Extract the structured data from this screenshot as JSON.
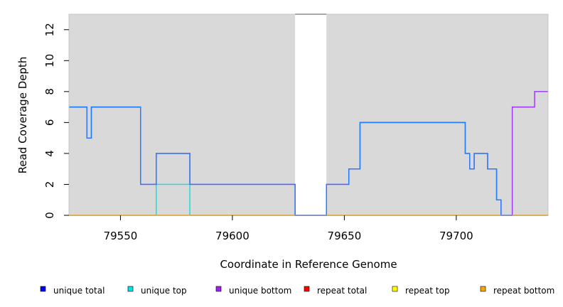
{
  "chart_data": {
    "type": "line",
    "step": true,
    "xlabel": "Coordinate in Reference Genome",
    "ylabel": "Read Coverage Depth",
    "xlim": [
      79527,
      79741
    ],
    "ylim": [
      0,
      13
    ],
    "xticks": [
      79550,
      79600,
      79650,
      79700
    ],
    "yticks": [
      0,
      2,
      4,
      6,
      8,
      10,
      12
    ],
    "gap_region": [
      79628,
      79642
    ],
    "background": "#d9d9d9",
    "legend_placement": "bottom",
    "series": [
      {
        "name": "unique top",
        "color": "#00e5e5",
        "points": [
          [
            79527,
            0
          ],
          [
            79566,
            0
          ],
          [
            79566,
            2
          ],
          [
            79581,
            2
          ],
          [
            79581,
            0
          ],
          [
            79741,
            0
          ]
        ]
      },
      {
        "name": "repeat total",
        "color": "#ff0000",
        "points": [
          [
            79527,
            0
          ],
          [
            79741,
            0
          ]
        ]
      },
      {
        "name": "repeat top",
        "color": "#e5e500",
        "points": [
          [
            79527,
            0
          ],
          [
            79741,
            0
          ]
        ]
      },
      {
        "name": "repeat bottom",
        "color": "#ffa500",
        "points": [
          [
            79527,
            0
          ],
          [
            79741,
            0
          ]
        ]
      },
      {
        "name": "unique bottom",
        "color": "#9b30ff",
        "points": [
          [
            79527,
            7
          ],
          [
            79535,
            7
          ],
          [
            79535,
            5
          ],
          [
            79537,
            5
          ],
          [
            79537,
            7
          ],
          [
            79559,
            7
          ],
          [
            79559,
            2
          ],
          [
            79566,
            2
          ],
          [
            79566,
            4
          ],
          [
            79581,
            4
          ],
          [
            79581,
            2
          ],
          [
            79628,
            2
          ],
          [
            79628,
            0
          ],
          [
            79642,
            0
          ],
          [
            79642,
            2
          ],
          [
            79652,
            2
          ],
          [
            79652,
            3
          ],
          [
            79657,
            3
          ],
          [
            79657,
            6
          ],
          [
            79704,
            6
          ],
          [
            79704,
            4
          ],
          [
            79706,
            4
          ],
          [
            79706,
            3
          ],
          [
            79708,
            3
          ],
          [
            79708,
            4
          ],
          [
            79714,
            4
          ],
          [
            79714,
            3
          ],
          [
            79718,
            3
          ],
          [
            79718,
            1
          ],
          [
            79720,
            1
          ],
          [
            79720,
            0
          ],
          [
            79725,
            0
          ],
          [
            79725,
            7
          ],
          [
            79735,
            7
          ],
          [
            79735,
            8
          ],
          [
            79741,
            8
          ]
        ]
      },
      {
        "name": "unique total",
        "color": "#1e7cff",
        "points": [
          [
            79527,
            7
          ],
          [
            79535,
            7
          ],
          [
            79535,
            5
          ],
          [
            79537,
            5
          ],
          [
            79537,
            7
          ],
          [
            79559,
            7
          ],
          [
            79559,
            2
          ],
          [
            79566,
            2
          ],
          [
            79566,
            4
          ],
          [
            79581,
            4
          ],
          [
            79581,
            2
          ],
          [
            79628,
            2
          ],
          [
            79628,
            0
          ],
          [
            79642,
            0
          ],
          [
            79642,
            2
          ],
          [
            79652,
            2
          ],
          [
            79652,
            3
          ],
          [
            79657,
            3
          ],
          [
            79657,
            6
          ],
          [
            79704,
            6
          ],
          [
            79704,
            4
          ],
          [
            79706,
            4
          ],
          [
            79706,
            3
          ],
          [
            79708,
            3
          ],
          [
            79708,
            4
          ],
          [
            79714,
            4
          ],
          [
            79714,
            3
          ],
          [
            79718,
            3
          ],
          [
            79718,
            1
          ],
          [
            79720,
            1
          ],
          [
            79720,
            0
          ],
          [
            79725,
            0
          ]
        ]
      }
    ],
    "legend": [
      {
        "label": "unique total",
        "color": "#0000ff"
      },
      {
        "label": "unique top",
        "color": "#00e5e5"
      },
      {
        "label": "unique bottom",
        "color": "#a020f0"
      },
      {
        "label": "repeat total",
        "color": "#ff0000"
      },
      {
        "label": "repeat top",
        "color": "#ffff00"
      },
      {
        "label": "repeat bottom",
        "color": "#ffa500"
      }
    ]
  }
}
